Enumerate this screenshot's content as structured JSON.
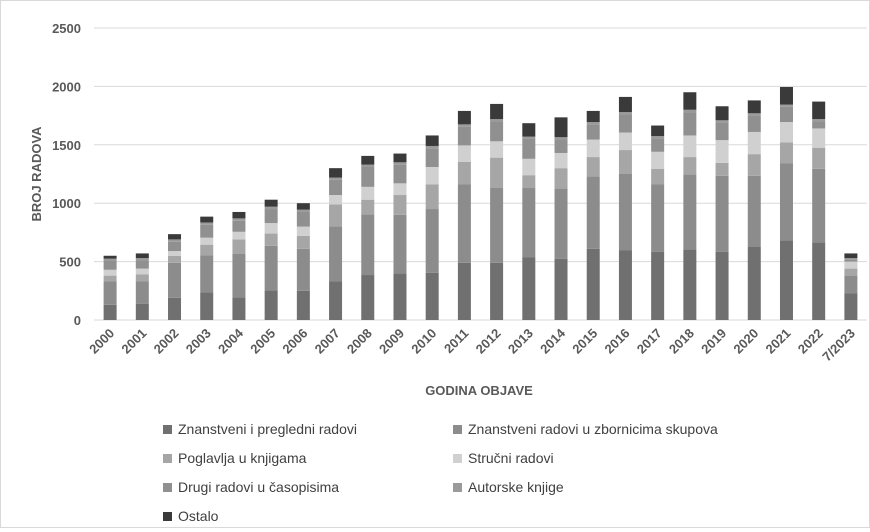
{
  "chart_data": {
    "type": "bar",
    "stacked": true,
    "title": "",
    "xlabel": "GODINA OBJAVE",
    "ylabel": "BROJ RADOVA",
    "ylim": [
      0,
      2500
    ],
    "yticks": [
      0,
      500,
      1000,
      1500,
      2000,
      2500
    ],
    "grid": true,
    "legend_position": "bottom",
    "categories": [
      "2000",
      "2001",
      "2002",
      "2003",
      "2004",
      "2005",
      "2006",
      "2007",
      "2008",
      "2009",
      "2010",
      "2011",
      "2012",
      "2013",
      "2014",
      "2015",
      "2016",
      "2017",
      "2018",
      "2019",
      "2020",
      "2021",
      "2022",
      "7/2023"
    ],
    "series": [
      {
        "name": "Znanstveni i pregledni radovi",
        "color": "#707070",
        "values": [
          130,
          140,
          190,
          235,
          195,
          255,
          250,
          330,
          385,
          400,
          405,
          490,
          490,
          535,
          525,
          610,
          595,
          585,
          605,
          585,
          625,
          680,
          665,
          230
        ]
      },
      {
        "name": "Znanstveni radovi u zbornicima skupova",
        "color": "#8c8c8c",
        "values": [
          200,
          190,
          300,
          320,
          370,
          380,
          360,
          470,
          520,
          500,
          545,
          670,
          640,
          595,
          600,
          620,
          655,
          575,
          640,
          650,
          610,
          660,
          630,
          150
        ]
      },
      {
        "name": "Poglavlja u knjigama",
        "color": "#a6a6a6",
        "values": [
          50,
          60,
          60,
          90,
          125,
          105,
          110,
          190,
          125,
          170,
          210,
          195,
          260,
          110,
          175,
          165,
          205,
          135,
          150,
          110,
          185,
          180,
          180,
          60
        ]
      },
      {
        "name": "Stručni radovi",
        "color": "#d0d0d0",
        "values": [
          50,
          50,
          40,
          60,
          65,
          90,
          80,
          80,
          110,
          100,
          150,
          140,
          140,
          140,
          130,
          150,
          150,
          145,
          185,
          195,
          190,
          175,
          165,
          60
        ]
      },
      {
        "name": "Drugi radovi u časopisima",
        "color": "#909090",
        "values": [
          80,
          70,
          80,
          110,
          95,
          120,
          125,
          130,
          170,
          160,
          160,
          160,
          170,
          170,
          115,
          130,
          155,
          115,
          200,
          150,
          140,
          130,
          60,
          20
        ]
      },
      {
        "name": "Autorske knjige",
        "color": "#9a9a9a",
        "values": [
          15,
          20,
          20,
          20,
          20,
          20,
          20,
          20,
          20,
          20,
          20,
          20,
          20,
          20,
          20,
          20,
          20,
          20,
          20,
          20,
          20,
          20,
          20,
          10
        ]
      },
      {
        "name": "Ostalo",
        "color": "#3a3a3a",
        "values": [
          25,
          40,
          45,
          50,
          55,
          60,
          55,
          80,
          75,
          75,
          90,
          115,
          130,
          115,
          170,
          95,
          130,
          90,
          150,
          120,
          110,
          150,
          150,
          40
        ]
      }
    ]
  }
}
